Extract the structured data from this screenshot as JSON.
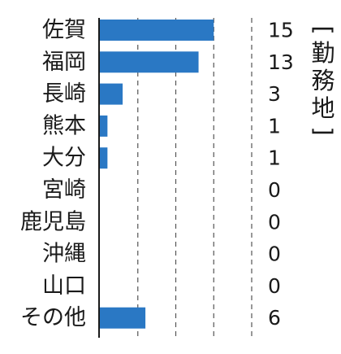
{
  "chart_data": {
    "type": "bar",
    "orientation": "horizontal",
    "categories": [
      "佐賀",
      "福岡",
      "長崎",
      "熊本",
      "大分",
      "宮崎",
      "鹿児島",
      "沖縄",
      "山口",
      "その他"
    ],
    "values": [
      15,
      13,
      3,
      1,
      1,
      0,
      0,
      0,
      0,
      6
    ],
    "value_labels": [
      "15",
      "13",
      "3",
      "1",
      "1",
      "0",
      "0",
      "0",
      "0",
      "6"
    ],
    "side_label": "[勤務地]",
    "xlim": [
      0,
      20
    ],
    "grid": "vertical dashed at 5, 10, 15, 20",
    "bar_color": "#2a78c4"
  }
}
